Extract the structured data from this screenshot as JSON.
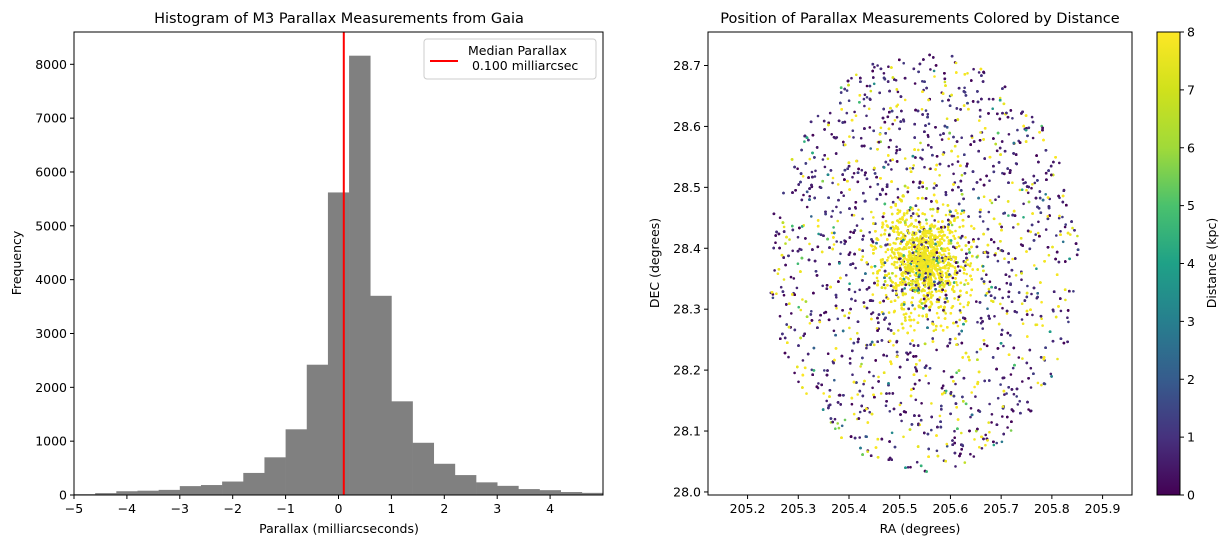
{
  "chart_data": [
    {
      "type": "bar",
      "title": "Histogram of M3 Parallax Measurements from Gaia",
      "xlabel": "Parallax (milliarcseconds)",
      "ylabel": "Frequency",
      "xlim": [
        -5,
        5
      ],
      "ylim": [
        0,
        8600
      ],
      "xticks": [
        -5,
        -4,
        -3,
        -2,
        -1,
        0,
        1,
        2,
        3,
        4
      ],
      "yticks": [
        0,
        1000,
        2000,
        3000,
        4000,
        5000,
        6000,
        7000,
        8000
      ],
      "bin_edges": [
        -5.0,
        -4.6,
        -4.2,
        -3.8,
        -3.4,
        -3.0,
        -2.6,
        -2.2,
        -1.8,
        -1.4,
        -1.0,
        -0.6,
        -0.2,
        0.2,
        0.6,
        1.0,
        1.4,
        1.8,
        2.2,
        2.6,
        3.0,
        3.4,
        3.8,
        4.2,
        4.6,
        5.0
      ],
      "values": [
        15,
        35,
        70,
        80,
        95,
        165,
        185,
        250,
        410,
        700,
        1220,
        2420,
        5620,
        8160,
        3700,
        1740,
        970,
        580,
        370,
        235,
        170,
        110,
        90,
        55,
        40
      ],
      "bar_color": "#808080",
      "median_line": {
        "x": 0.1,
        "color": "#ff0000"
      },
      "legend": {
        "label": "Median Parallax\n 0.100 milliarcsec",
        "position": "upper right"
      },
      "grid": false
    },
    {
      "type": "scatter",
      "title": "Position of Parallax Measurements Colored by Distance",
      "xlabel": "RA (degrees)",
      "ylabel": "DEC (degrees)",
      "xlim": [
        205.122,
        205.958
      ],
      "ylim": [
        27.995,
        28.755
      ],
      "xticks": [
        205.2,
        205.3,
        205.4,
        205.5,
        205.6,
        205.7,
        205.8,
        205.9
      ],
      "yticks": [
        28.0,
        28.1,
        28.2,
        28.3,
        28.4,
        28.5,
        28.6,
        28.7
      ],
      "center": {
        "ra": 205.548,
        "dec": 28.377
      },
      "field_radius_deg": 0.345,
      "n_points_estimate": 7000,
      "colormap": "viridis",
      "colorbar": {
        "label": "Distance (kpc)",
        "range": [
          0,
          8
        ],
        "ticks": [
          0,
          1,
          2,
          3,
          4,
          5,
          6,
          7,
          8
        ]
      },
      "grid": false
    }
  ]
}
